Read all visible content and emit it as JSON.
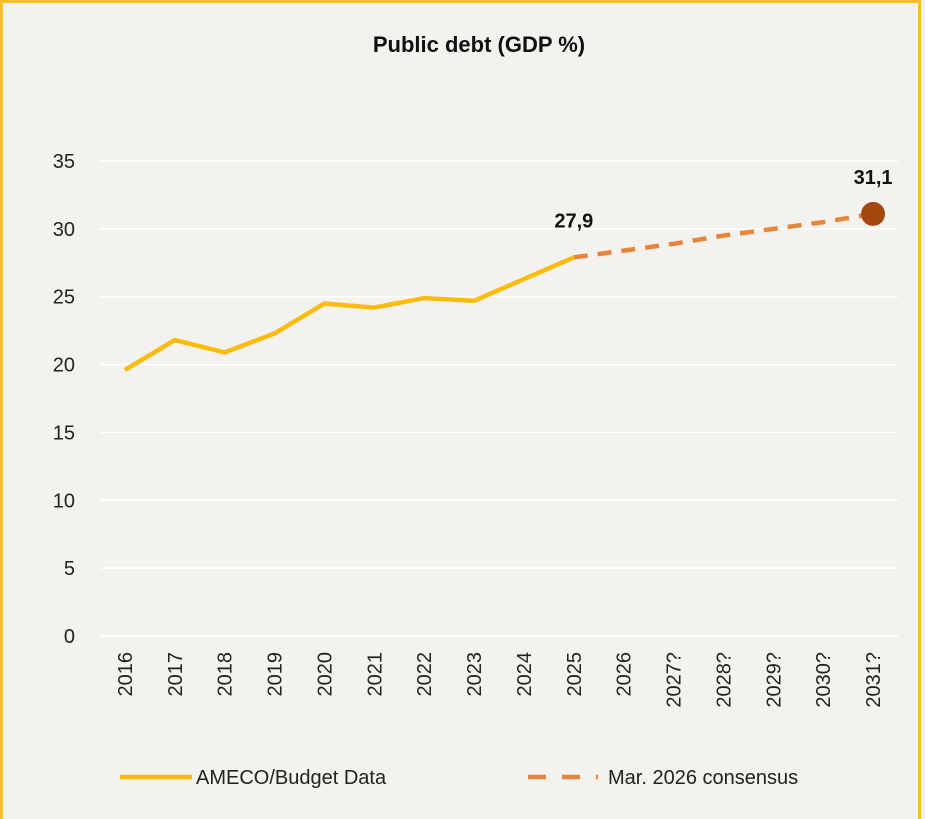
{
  "colors": {
    "background": "#f3f2ee",
    "border": "#f6bf26",
    "actual_line": "#fbbc09",
    "forecast_line": "#e8833a",
    "endpoint_marker": "#a4470f",
    "grid": "#ffffff"
  },
  "chart_data": {
    "type": "line",
    "title": "Public debt (GDP %)",
    "xlabel": "",
    "ylabel": "",
    "categories": [
      "2016",
      "2017",
      "2018",
      "2019",
      "2020",
      "2021",
      "2022",
      "2023",
      "2024",
      "2025",
      "2026",
      "2027?",
      "2028?",
      "2029?",
      "2030?",
      "2031?"
    ],
    "ylim": [
      0,
      35
    ],
    "yticks": [
      0,
      5,
      10,
      15,
      20,
      25,
      30,
      35
    ],
    "grid": true,
    "legend_position": "bottom",
    "series": [
      {
        "name": "AMECO/Budget Data",
        "style": "solid",
        "values": [
          19.6,
          21.8,
          20.9,
          22.3,
          24.5,
          24.2,
          24.9,
          24.7,
          26.3,
          27.9,
          null,
          null,
          null,
          null,
          null,
          null
        ]
      },
      {
        "name": "Mar. 2026 consensus",
        "style": "dashed",
        "values": [
          null,
          null,
          null,
          null,
          null,
          null,
          null,
          null,
          null,
          27.9,
          28.4,
          28.9,
          29.5,
          30.0,
          30.5,
          31.1
        ]
      }
    ],
    "annotations": [
      {
        "category": "2025",
        "value": 27.9,
        "label": "27,9"
      },
      {
        "category": "2031?",
        "value": 31.1,
        "label": "31,1",
        "marker": "circle"
      }
    ]
  }
}
